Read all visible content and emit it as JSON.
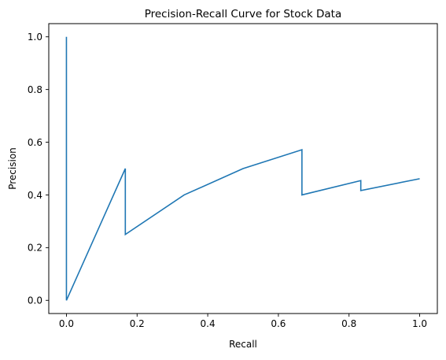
{
  "chart_data": {
    "type": "line",
    "title": "Precision-Recall Curve for Stock Data",
    "xlabel": "Recall",
    "ylabel": "Precision",
    "xlim": [
      -0.05,
      1.05
    ],
    "ylim": [
      -0.05,
      1.05
    ],
    "xticks": [
      0.0,
      0.2,
      0.4,
      0.6,
      0.8,
      1.0
    ],
    "yticks": [
      0.0,
      0.2,
      0.4,
      0.6,
      0.8,
      1.0
    ],
    "xtick_labels": [
      "0.0",
      "0.2",
      "0.4",
      "0.6",
      "0.8",
      "1.0"
    ],
    "ytick_labels": [
      "0.0",
      "0.2",
      "0.4",
      "0.6",
      "0.8",
      "1.0"
    ],
    "grid": false,
    "legend": "none",
    "series": [
      {
        "color": "#1f77b4",
        "x": [
          0.0,
          0.0,
          0.1667,
          0.1667,
          0.3333,
          0.5,
          0.6667,
          0.6667,
          0.8333,
          0.8333,
          1.0
        ],
        "y": [
          1.0,
          0.0,
          0.5,
          0.25,
          0.4,
          0.5,
          0.5714,
          0.4,
          0.4545,
          0.4167,
          0.4615
        ]
      }
    ]
  }
}
